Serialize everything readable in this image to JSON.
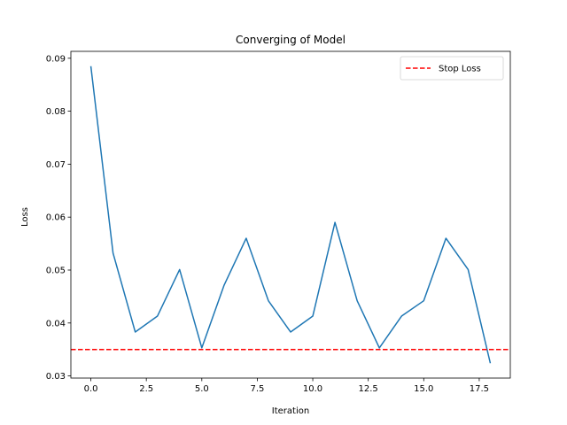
{
  "chart_data": {
    "type": "line",
    "title": "Converging of Model",
    "xlabel": "Iteration",
    "ylabel": "Loss",
    "x": [
      0,
      1,
      2,
      3,
      4,
      5,
      6,
      7,
      8,
      9,
      10,
      11,
      12,
      13,
      14,
      15,
      16,
      17,
      18
    ],
    "series": [
      {
        "values": [
          0.0885,
          0.0532,
          0.0383,
          0.0413,
          0.0501,
          0.0353,
          0.0471,
          0.056,
          0.0442,
          0.0383,
          0.0413,
          0.059,
          0.0442,
          0.0353,
          0.0413,
          0.0442,
          0.056,
          0.0501,
          0.0324
        ],
        "color": "#1f77b4"
      }
    ],
    "hlines": [
      {
        "name": "Stop Loss",
        "y": 0.035,
        "color": "#ff0000",
        "style": "dashed"
      }
    ],
    "xlim": [
      -0.9,
      18.9
    ],
    "ylim": [
      0.0296,
      0.0913
    ],
    "xticks": [
      0.0,
      2.5,
      5.0,
      7.5,
      10.0,
      12.5,
      15.0,
      17.5
    ],
    "xtick_labels": [
      "0.0",
      "2.5",
      "5.0",
      "7.5",
      "10.0",
      "12.5",
      "15.0",
      "17.5"
    ],
    "yticks": [
      0.03,
      0.04,
      0.05,
      0.06,
      0.07,
      0.08,
      0.09
    ],
    "ytick_labels": [
      "0.03",
      "0.04",
      "0.05",
      "0.06",
      "0.07",
      "0.08",
      "0.09"
    ],
    "legend": {
      "position": "top-right",
      "entries": [
        "Stop Loss"
      ]
    },
    "grid": false
  }
}
